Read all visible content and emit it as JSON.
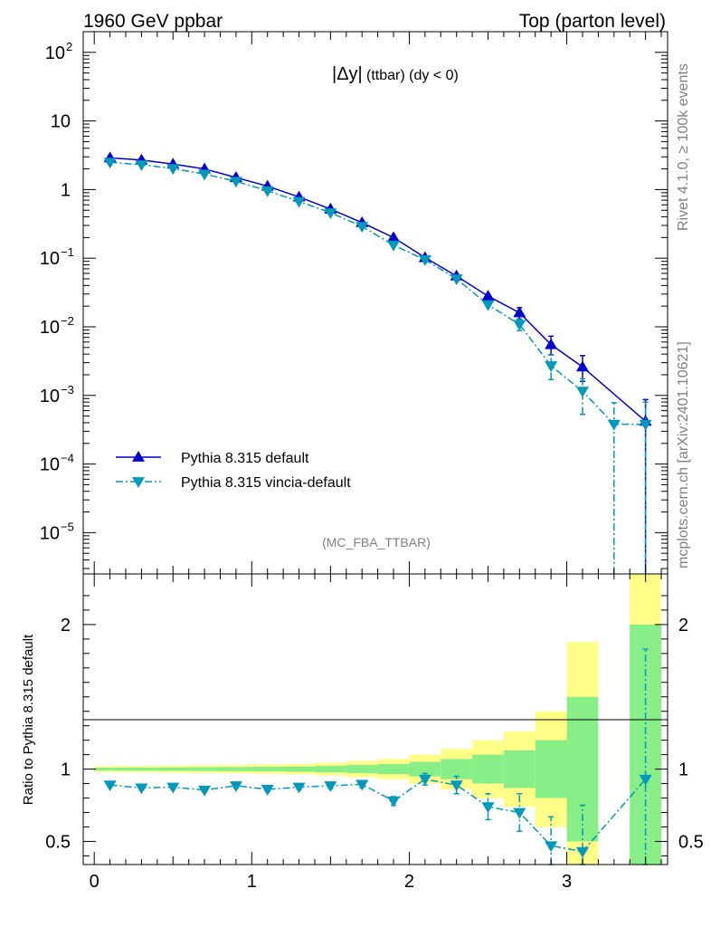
{
  "header": {
    "left": "1960 GeV ppbar",
    "right": "Top (parton level)"
  },
  "side_labels": {
    "rivet": "Rivet 4.1.0, ≥ 100k events",
    "mcplots": "mcplots.cern.ch [arXiv:2401.10621]"
  },
  "chart_data": {
    "type": "line",
    "title": "|Δy| (ttbar) (dy < 0)",
    "title_main": "|Δy|",
    "title_sub": "(ttbar) (dy < 0)",
    "analysis_id": "(MC_FBA_TTBAR)",
    "xlabel": "",
    "ylabel": "",
    "xlim": [
      -0.07,
      3.64
    ],
    "ylim": [
      2.5e-06,
      200
    ],
    "yscale": "log",
    "x_ticks": [
      "0",
      "1",
      "2",
      "3"
    ],
    "y_ticks": [
      {
        "base": "10",
        "exp": "2",
        "value": 100
      },
      {
        "base": "10",
        "exp": "",
        "value": 10
      },
      {
        "base": "1",
        "exp": "",
        "value": 1
      },
      {
        "base": "10",
        "exp": "−1",
        "value": 0.1
      },
      {
        "base": "10",
        "exp": "−2",
        "value": 0.01
      },
      {
        "base": "10",
        "exp": "−3",
        "value": 0.001
      },
      {
        "base": "10",
        "exp": "−4",
        "value": 0.0001
      },
      {
        "base": "10",
        "exp": "−5",
        "value": 1e-05
      }
    ],
    "series": [
      {
        "name": "Pythia 8.315 default",
        "color": "#0000cc",
        "marker": "triangle-up",
        "line": "solid",
        "x": [
          0.1,
          0.3,
          0.5,
          0.7,
          0.9,
          1.1,
          1.3,
          1.5,
          1.7,
          1.9,
          2.1,
          2.3,
          2.5,
          2.7,
          2.9,
          3.1,
          3.5
        ],
        "values": [
          2.9,
          2.7,
          2.35,
          2.0,
          1.5,
          1.12,
          0.78,
          0.52,
          0.33,
          0.2,
          0.102,
          0.055,
          0.028,
          0.016,
          0.0055,
          0.0026,
          0.00042
        ],
        "err_lo": [
          0.03,
          0.03,
          0.03,
          0.025,
          0.02,
          0.016,
          0.012,
          0.009,
          0.007,
          0.005,
          0.003,
          0.002,
          0.0012,
          0.003,
          0.0016,
          0.001,
          0.00042
        ],
        "err_hi": [
          0.03,
          0.03,
          0.03,
          0.025,
          0.02,
          0.016,
          0.012,
          0.009,
          0.007,
          0.005,
          0.003,
          0.002,
          0.0012,
          0.003,
          0.0018,
          0.0012,
          0.00045
        ]
      },
      {
        "name": "Pythia 8.315 vincia-default",
        "color": "#0099bb",
        "marker": "triangle-down",
        "line": "dashdot",
        "x": [
          0.1,
          0.3,
          0.5,
          0.7,
          0.9,
          1.1,
          1.3,
          1.5,
          1.7,
          1.9,
          2.1,
          2.3,
          2.5,
          2.7,
          2.9,
          3.1,
          3.3,
          3.5
        ],
        "values": [
          2.5,
          2.3,
          2.03,
          1.68,
          1.32,
          0.96,
          0.67,
          0.46,
          0.29,
          0.155,
          0.095,
          0.05,
          0.021,
          0.0108,
          0.0027,
          0.00115,
          0.00038,
          0.00038
        ],
        "err_lo": [
          0.03,
          0.03,
          0.03,
          0.025,
          0.02,
          0.016,
          0.012,
          0.009,
          0.007,
          0.005,
          0.003,
          0.002,
          0.0012,
          0.002,
          0.001,
          0.00062,
          0.000379,
          0.000379
        ],
        "err_hi": [
          0.03,
          0.03,
          0.03,
          0.025,
          0.02,
          0.016,
          0.012,
          0.009,
          0.007,
          0.005,
          0.003,
          0.002,
          0.0012,
          0.002,
          0.0012,
          0.0006,
          0.0004,
          0.00042
        ]
      }
    ],
    "ratio": {
      "ylabel": "Ratio to Pythia 8.315 default",
      "ylim": [
        0.34,
        2.35
      ],
      "y_ticks": [
        "0.5",
        "1",
        "2"
      ],
      "y_tick_values": [
        0.5,
        1,
        2
      ],
      "band_bins": [
        {
          "lo": 0.0,
          "hi": 0.2,
          "g": 0.01,
          "y": 0.02
        },
        {
          "lo": 0.2,
          "hi": 0.4,
          "g": 0.011,
          "y": 0.022
        },
        {
          "lo": 0.4,
          "hi": 0.6,
          "g": 0.012,
          "y": 0.024
        },
        {
          "lo": 0.6,
          "hi": 0.8,
          "g": 0.013,
          "y": 0.026
        },
        {
          "lo": 0.8,
          "hi": 1.0,
          "g": 0.014,
          "y": 0.028
        },
        {
          "lo": 1.0,
          "hi": 1.2,
          "g": 0.016,
          "y": 0.032
        },
        {
          "lo": 1.2,
          "hi": 1.4,
          "g": 0.018,
          "y": 0.036
        },
        {
          "lo": 1.4,
          "hi": 1.6,
          "g": 0.022,
          "y": 0.044
        },
        {
          "lo": 1.6,
          "hi": 1.8,
          "g": 0.028,
          "y": 0.056
        },
        {
          "lo": 1.8,
          "hi": 2.0,
          "g": 0.035,
          "y": 0.07
        },
        {
          "lo": 2.0,
          "hi": 2.2,
          "g": 0.05,
          "y": 0.1
        },
        {
          "lo": 2.2,
          "hi": 2.4,
          "g": 0.07,
          "y": 0.14
        },
        {
          "lo": 2.4,
          "hi": 2.6,
          "g": 0.1,
          "y": 0.2
        },
        {
          "lo": 2.6,
          "hi": 2.8,
          "g": 0.13,
          "y": 0.26
        },
        {
          "lo": 2.8,
          "hi": 3.0,
          "g": 0.2,
          "y": 0.4
        },
        {
          "lo": 3.0,
          "hi": 3.2,
          "g": 0.5,
          "y": 0.88
        },
        {
          "lo": 3.4,
          "hi": 3.6,
          "g": 1.0,
          "y": 1.4
        }
      ],
      "points": {
        "x": [
          0.1,
          0.3,
          0.5,
          0.7,
          0.9,
          1.1,
          1.3,
          1.5,
          1.7,
          1.9,
          2.1,
          2.3,
          2.5,
          2.7,
          2.9,
          3.1,
          3.5
        ],
        "values": [
          0.89,
          0.87,
          0.875,
          0.855,
          0.885,
          0.86,
          0.875,
          0.885,
          0.895,
          0.78,
          0.93,
          0.89,
          0.74,
          0.7,
          0.47,
          0.43,
          0.93
        ],
        "err_lo": [
          0.012,
          0.012,
          0.012,
          0.013,
          0.014,
          0.015,
          0.016,
          0.018,
          0.022,
          0.03,
          0.04,
          0.06,
          0.09,
          0.13,
          0.2,
          0.25,
          0.9
        ],
        "err_hi": [
          0.012,
          0.012,
          0.012,
          0.013,
          0.014,
          0.015,
          0.016,
          0.018,
          0.022,
          0.03,
          0.04,
          0.06,
          0.09,
          0.13,
          0.2,
          0.32,
          0.9
        ]
      }
    },
    "colors": {
      "band_inner": "#88ee88",
      "band_outer": "#ffff88",
      "axis": "#000000"
    }
  }
}
